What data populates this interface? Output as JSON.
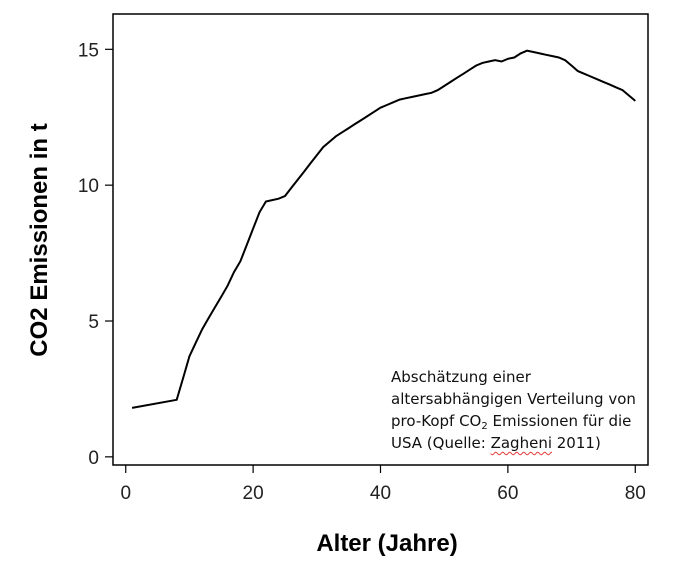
{
  "chart_data": {
    "type": "line",
    "xlabel": "Alter (Jahre)",
    "ylabel": "CO2 Emissionen in t",
    "xlim": [
      -2,
      82
    ],
    "ylim": [
      -0.3,
      16.3
    ],
    "xticks": [
      0,
      20,
      40,
      60,
      80
    ],
    "yticks": [
      0,
      5,
      10,
      15
    ],
    "grid": false,
    "annotation": {
      "lines": [
        "Abschätzung einer",
        "altersabhängigen Verteilung von"
      ],
      "line3_prefix": "pro-Kopf CO",
      "line3_subscript": "2",
      "line3_suffix": " Emissionen für die",
      "line4_prefix": "USA (Quelle: ",
      "line4_source": "Zagheni",
      "line4_suffix": " 2011)"
    },
    "series": [
      {
        "x": [
          1,
          8,
          9,
          10,
          11,
          12,
          13,
          14,
          15,
          16,
          17,
          18,
          19,
          20,
          21,
          22,
          23,
          24,
          25,
          26,
          27,
          28,
          29,
          30,
          31,
          32,
          33,
          34,
          35,
          36,
          37,
          38,
          39,
          40,
          41,
          42,
          43,
          44,
          45,
          46,
          47,
          48,
          49,
          50,
          51,
          52,
          53,
          54,
          55,
          56,
          57,
          58,
          59,
          60,
          61,
          62,
          63,
          64,
          65,
          66,
          67,
          68,
          69,
          70,
          71,
          72,
          73,
          74,
          75,
          76,
          77,
          78,
          79,
          80
        ],
        "values": [
          1.8,
          2.1,
          2.9,
          3.7,
          4.2,
          4.7,
          5.1,
          5.5,
          5.9,
          6.3,
          6.8,
          7.2,
          7.8,
          8.4,
          9.0,
          9.4,
          9.45,
          9.5,
          9.6,
          9.9,
          10.2,
          10.5,
          10.8,
          11.1,
          11.4,
          11.6,
          11.8,
          11.95,
          12.1,
          12.25,
          12.4,
          12.55,
          12.7,
          12.85,
          12.95,
          13.05,
          13.15,
          13.2,
          13.25,
          13.3,
          13.35,
          13.4,
          13.5,
          13.65,
          13.8,
          13.95,
          14.1,
          14.25,
          14.4,
          14.5,
          14.55,
          14.6,
          14.55,
          14.65,
          14.7,
          14.85,
          14.95,
          14.9,
          14.85,
          14.8,
          14.75,
          14.7,
          14.6,
          14.4,
          14.2,
          14.1,
          14.0,
          13.9,
          13.8,
          13.7,
          13.6,
          13.5,
          13.3,
          13.1
        ]
      }
    ]
  }
}
